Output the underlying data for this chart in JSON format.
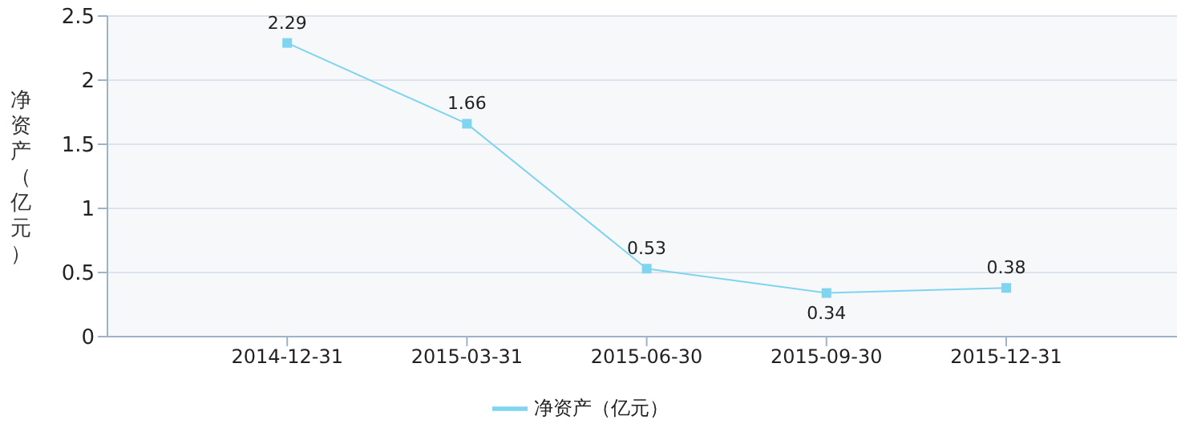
{
  "chart_data": {
    "type": "line",
    "ylabel": "净资产（亿元）",
    "categories": [
      "2014-12-31",
      "2015-03-31",
      "2015-06-30",
      "2015-09-30",
      "2015-12-31"
    ],
    "series": [
      {
        "name": "净资产（亿元）",
        "color": "#7fd4f0",
        "values": [
          2.29,
          1.66,
          0.53,
          0.34,
          0.38
        ]
      }
    ],
    "ylim": [
      0,
      2.5
    ],
    "yticks": [
      0,
      0.5,
      1,
      1.5,
      2,
      2.5
    ],
    "grid": "y",
    "legend": "bottom",
    "marker": "square",
    "data_labels": true
  }
}
